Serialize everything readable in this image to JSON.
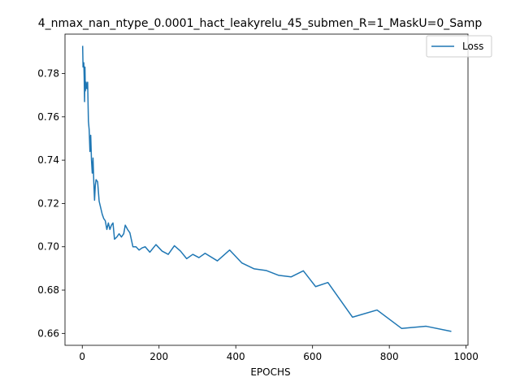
{
  "chart_data": {
    "type": "line",
    "title": "4_nmax_nan_ntype_0.0001_hact_leakyrelu_45_submen_R=1_MaskU=0_Samp",
    "xlabel": "EPOCHS",
    "ylabel": "",
    "xlim": [
      -45,
      1005
    ],
    "ylim": [
      0.6545,
      0.7982
    ],
    "xticks": [
      0,
      200,
      400,
      600,
      800,
      1000
    ],
    "yticks": [
      0.66,
      0.68,
      0.7,
      0.72,
      0.74,
      0.76,
      0.78
    ],
    "xtick_labels": [
      "0",
      "200",
      "400",
      "600",
      "800",
      "1000"
    ],
    "ytick_labels": [
      "0.66",
      "0.68",
      "0.70",
      "0.72",
      "0.74",
      "0.76",
      "0.78"
    ],
    "grid": false,
    "legend_position": "top-right",
    "line_color": "#1f77b4",
    "series": [
      {
        "name": "Loss",
        "x": [
          1,
          2,
          4,
          5,
          6,
          7,
          8,
          10,
          12,
          14,
          16,
          18,
          20,
          22,
          24,
          26,
          28,
          30,
          32,
          34,
          36,
          40,
          44,
          48,
          52,
          56,
          60,
          64,
          68,
          72,
          76,
          80,
          84,
          90,
          96,
          102,
          108,
          112,
          118,
          124,
          132,
          140,
          148,
          156,
          164,
          176,
          192,
          208,
          224,
          240,
          256,
          272,
          288,
          304,
          320,
          352,
          384,
          416,
          448,
          480,
          512,
          544,
          576,
          608,
          640,
          704,
          768,
          832,
          896,
          960
        ],
        "y": [
          0.7925,
          0.783,
          0.785,
          0.778,
          0.767,
          0.783,
          0.772,
          0.776,
          0.773,
          0.776,
          0.758,
          0.754,
          0.744,
          0.7515,
          0.74,
          0.734,
          0.741,
          0.73,
          0.7215,
          0.7285,
          0.731,
          0.73,
          0.721,
          0.718,
          0.715,
          0.713,
          0.712,
          0.708,
          0.711,
          0.708,
          0.71,
          0.711,
          0.7035,
          0.7045,
          0.706,
          0.7045,
          0.706,
          0.71,
          0.708,
          0.7065,
          0.7,
          0.7,
          0.6985,
          0.6995,
          0.7,
          0.6975,
          0.701,
          0.698,
          0.6965,
          0.7005,
          0.698,
          0.6945,
          0.6965,
          0.695,
          0.697,
          0.6935,
          0.6985,
          0.6925,
          0.6898,
          0.689,
          0.6868,
          0.6861,
          0.6889,
          0.6816,
          0.6835,
          0.6675,
          0.6708,
          0.6623,
          0.6633,
          0.661
        ]
      }
    ]
  }
}
